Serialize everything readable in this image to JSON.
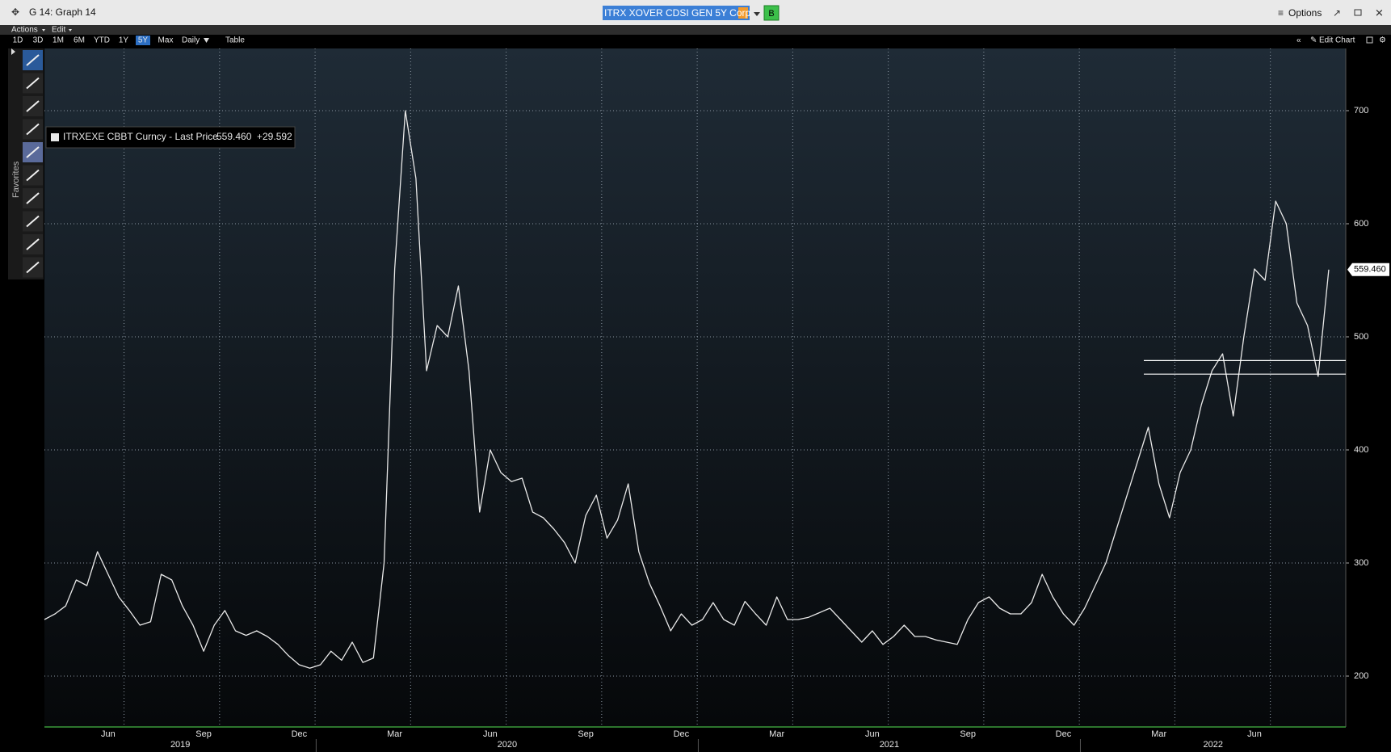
{
  "window": {
    "title": "G 14: Graph 14",
    "ticker": "ITRX XOVER CDSI GEN 5Y Corp",
    "ticker_button": "B",
    "options": "Options"
  },
  "menu": {
    "actions": "Actions",
    "edit": "Edit"
  },
  "toolbar": {
    "ranges": [
      "1D",
      "3D",
      "1M",
      "6M",
      "YTD",
      "1Y",
      "5Y",
      "Max",
      "Daily"
    ],
    "table": "Table",
    "edit_chart": "Edit Chart",
    "favorites": "Favorites"
  },
  "chart_data": {
    "type": "line",
    "categories": [
      null,
      null,
      null,
      null,
      null,
      null,
      "Jun",
      null,
      null,
      null,
      null,
      null,
      null,
      null,
      null,
      "Sep",
      null,
      null,
      null,
      null,
      null,
      null,
      null,
      null,
      "Dec",
      null,
      null,
      null,
      null,
      null,
      null,
      null,
      null,
      "Mar",
      null,
      null,
      null,
      null,
      null,
      null,
      null,
      null,
      "Jun",
      null,
      null,
      null,
      null,
      null,
      null,
      null,
      null,
      "Sep",
      null,
      null,
      null,
      null,
      null,
      null,
      null,
      null,
      "Dec",
      null,
      null,
      null,
      null,
      null,
      null,
      null,
      null,
      "Mar",
      null,
      null,
      null,
      null,
      null,
      null,
      null,
      null,
      "Jun",
      null,
      null,
      null,
      null,
      null,
      null,
      null,
      null,
      "Sep",
      null,
      null,
      null,
      null,
      null,
      null,
      null,
      null,
      "Dec",
      null,
      null,
      null,
      null,
      null,
      null,
      null,
      null,
      "Mar",
      null,
      null,
      null,
      null,
      null,
      null,
      null,
      null,
      "Jun",
      null,
      null,
      null,
      null,
      null,
      null,
      null
    ],
    "x_group_labels": [
      "2019",
      "2020",
      "2021",
      "2022"
    ],
    "series": [
      {
        "name": "ITRXEXE CBBT Curncy - Last Price",
        "color": "#e8e8e8",
        "values": [
          250,
          255,
          262,
          285,
          280,
          310,
          290,
          270,
          258,
          245,
          248,
          290,
          285,
          262,
          245,
          222,
          245,
          258,
          240,
          236,
          240,
          235,
          228,
          218,
          210,
          207,
          210,
          222,
          214,
          230,
          212,
          216,
          300,
          560,
          700,
          640,
          470,
          510,
          500,
          545,
          470,
          345,
          400,
          380,
          372,
          375,
          345,
          340,
          330,
          318,
          300,
          342,
          360,
          322,
          338,
          370,
          310,
          282,
          262,
          240,
          255,
          245,
          250,
          265,
          250,
          245,
          266,
          255,
          245,
          270,
          250,
          250,
          252,
          256,
          260,
          250,
          240,
          230,
          240,
          228,
          235,
          245,
          235,
          235,
          232,
          230,
          228,
          250,
          265,
          270,
          260,
          255,
          255,
          265,
          290,
          270,
          255,
          245,
          260,
          280,
          300,
          330,
          360,
          390,
          420,
          370,
          340,
          380,
          400,
          440,
          470,
          485,
          430,
          500,
          560,
          550,
          620,
          600,
          530,
          510,
          465,
          559.46
        ]
      }
    ],
    "last_price_label": "559.460",
    "change_label": "+29.592",
    "horizontal_lines": [
      479,
      467
    ],
    "ylim": [
      155,
      755
    ],
    "yticks": [
      200,
      300,
      400,
      500,
      600,
      700
    ],
    "grid": true
  }
}
